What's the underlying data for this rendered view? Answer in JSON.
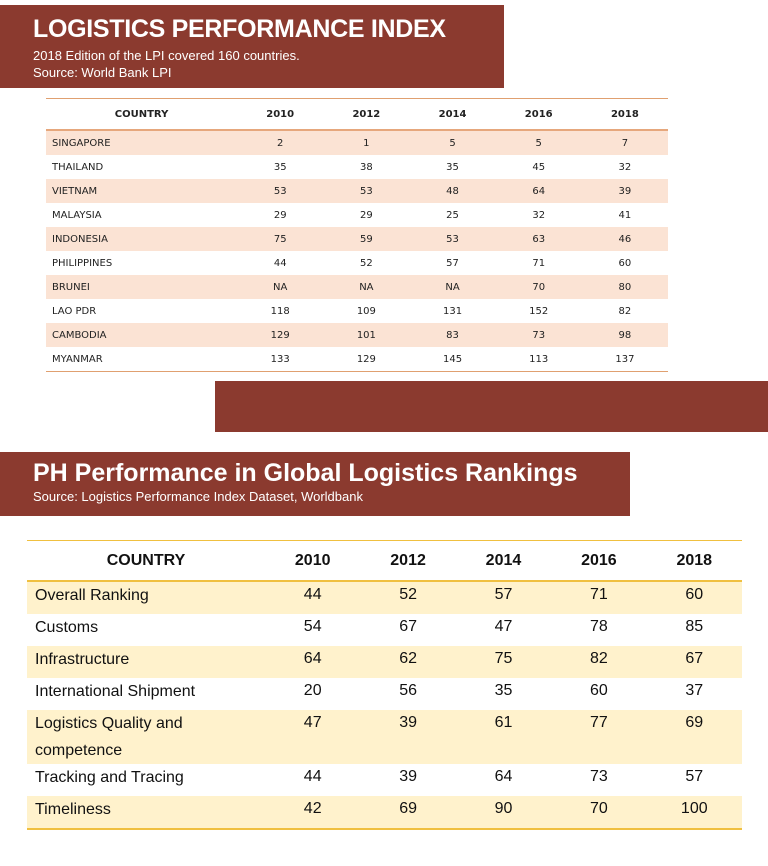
{
  "lpi": {
    "title": "LOGISTICS PERFORMANCE INDEX",
    "subtitle": "2018 Edition of the LPI covered 160 countries.",
    "source": "Source: World Bank LPI",
    "headers": [
      "COUNTRY",
      "2010",
      "2012",
      "2014",
      "2016",
      "2018"
    ],
    "rows": [
      [
        "SINGAPORE",
        "2",
        "1",
        "5",
        "5",
        "7"
      ],
      [
        "THAILAND",
        "35",
        "38",
        "35",
        "45",
        "32"
      ],
      [
        "VIETNAM",
        "53",
        "53",
        "48",
        "64",
        "39"
      ],
      [
        "MALAYSIA",
        "29",
        "29",
        "25",
        "32",
        "41"
      ],
      [
        "INDONESIA",
        "75",
        "59",
        "53",
        "63",
        "46"
      ],
      [
        "PHILIPPINES",
        "44",
        "52",
        "57",
        "71",
        "60"
      ],
      [
        "BRUNEI",
        "NA",
        "NA",
        "NA",
        "70",
        "80"
      ],
      [
        "LAO PDR",
        "118",
        "109",
        "131",
        "152",
        "82"
      ],
      [
        "CAMBODIA",
        "129",
        "101",
        "83",
        "73",
        "98"
      ],
      [
        "MYANMAR",
        "133",
        "129",
        "145",
        "113",
        "137"
      ]
    ]
  },
  "ph": {
    "title": "PH Performance in Global Logistics Rankings",
    "source": "Source: Logistics Performance Index Dataset, Worldbank",
    "headers": [
      "COUNTRY",
      "2010",
      "2012",
      "2014",
      "2016",
      "2018"
    ],
    "rows": [
      [
        "Overall Ranking",
        "44",
        "52",
        "57",
        "71",
        "60"
      ],
      [
        "Customs",
        "54",
        "67",
        "47",
        "78",
        "85"
      ],
      [
        "Infrastructure",
        "64",
        "62",
        "75",
        "82",
        "67"
      ],
      [
        "International Shipment",
        "20",
        "56",
        "35",
        "60",
        "37"
      ],
      [
        "Logistics Quality and competence",
        "47",
        "39",
        "61",
        "77",
        "69"
      ],
      [
        "Tracking and Tracing",
        "44",
        "39",
        "64",
        "73",
        "57"
      ],
      [
        "Timeliness",
        "42",
        "69",
        "90",
        "70",
        "100"
      ]
    ]
  },
  "colors": {
    "brand": "#8b3a2f",
    "row_peach": "#fbe3d4",
    "row_yellow": "#fff2cc"
  }
}
